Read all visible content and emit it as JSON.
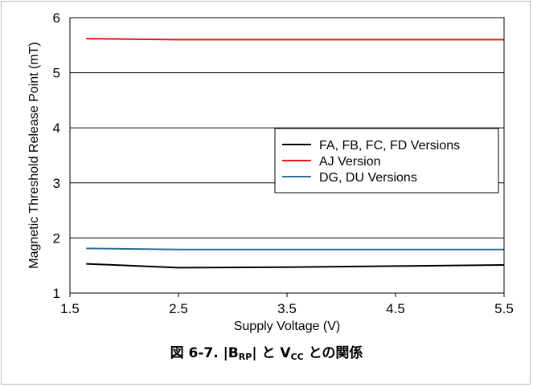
{
  "chart_data": {
    "type": "line",
    "xlabel": "Supply Voltage (V)",
    "ylabel": "Magnetic Threshold Release Point (mT)",
    "xlim": [
      1.5,
      5.5
    ],
    "ylim": [
      1,
      6
    ],
    "xticks": [
      "1.5",
      "2.5",
      "3.5",
      "4.5",
      "5.5"
    ],
    "yticks": [
      "1",
      "2",
      "3",
      "4",
      "5",
      "6"
    ],
    "grid": "horizontal",
    "legend_position": "center-right",
    "series": [
      {
        "name": "FA, FB, FC, FD Versions",
        "color": "#000000",
        "x": [
          1.65,
          2.5,
          3.5,
          4.5,
          5.5
        ],
        "y": [
          1.53,
          1.46,
          1.47,
          1.49,
          1.51
        ]
      },
      {
        "name": "AJ Version",
        "color": "#e8141b",
        "x": [
          1.65,
          2.5,
          3.5,
          4.5,
          5.5
        ],
        "y": [
          5.62,
          5.6,
          5.6,
          5.6,
          5.6
        ]
      },
      {
        "name": "DG, DU Versions",
        "color": "#2e6e8e",
        "x": [
          1.65,
          2.5,
          3.5,
          4.5,
          5.5
        ],
        "y": [
          1.81,
          1.79,
          1.79,
          1.79,
          1.79
        ]
      }
    ]
  },
  "caption": {
    "prefix": "図 6-7. |B",
    "sub1": "RP",
    "middle": "| と V",
    "sub2": "CC",
    "suffix": " との関係"
  }
}
